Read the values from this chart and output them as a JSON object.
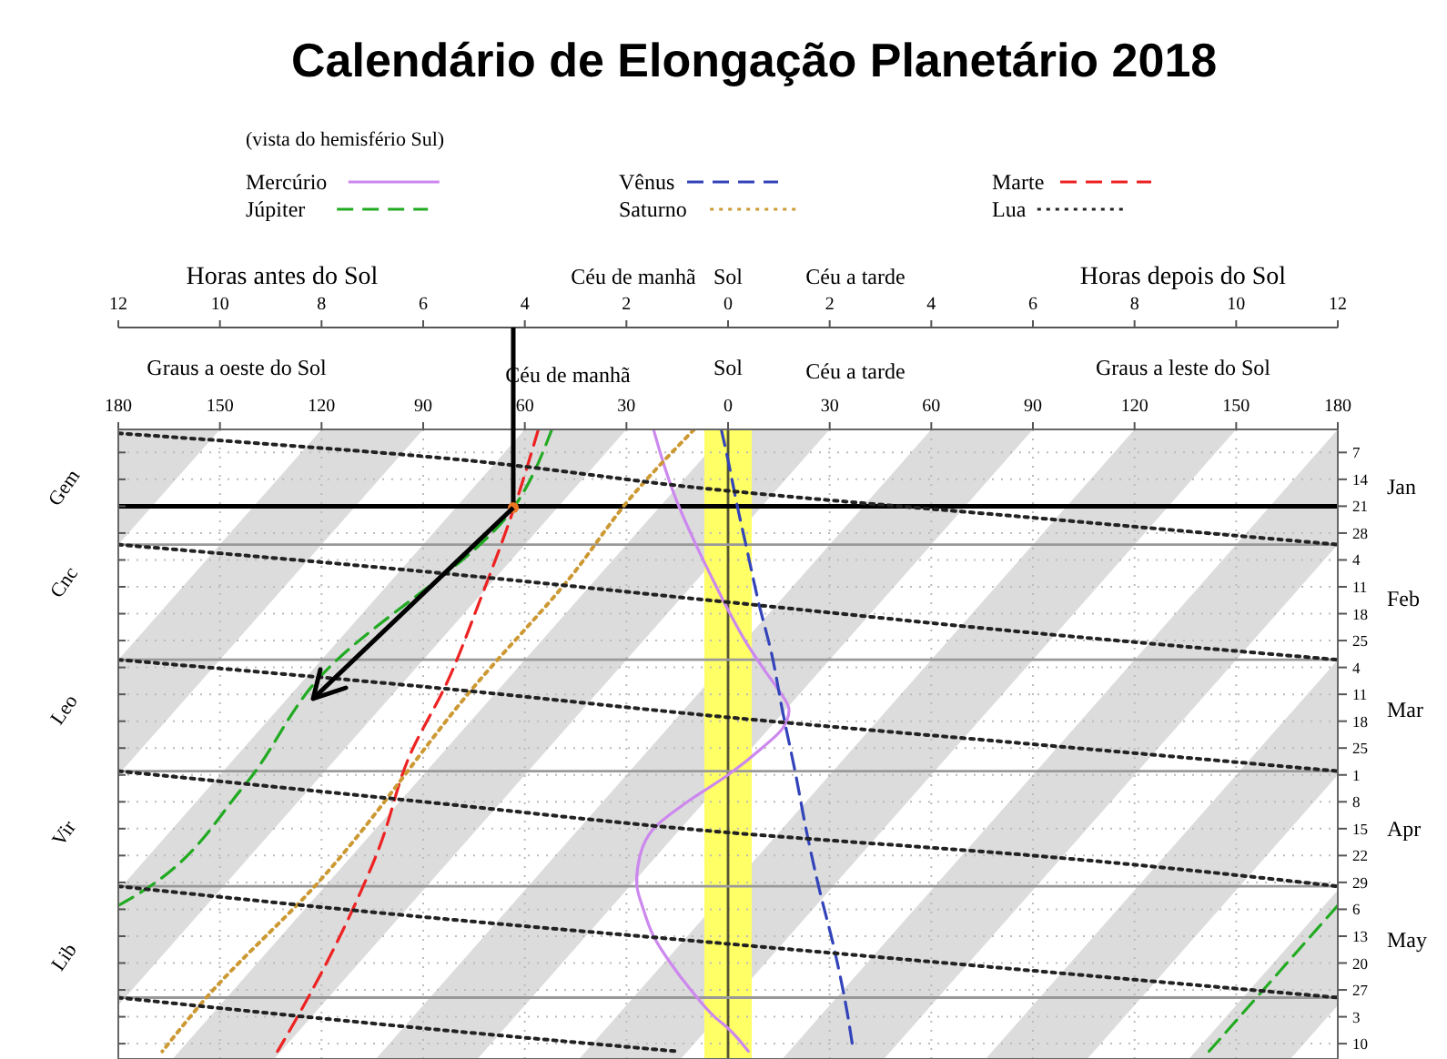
{
  "chart_data": {
    "type": "line",
    "title": "Calendário de Elongação Planetário 2018",
    "subtitle": "(vista do hemisfério Sul)",
    "annotations": [
      "Horas antes do Sol",
      "Céu de manhã",
      "Sol",
      "Céu a tarde",
      "Horas depois do Sol",
      "Graus a oeste do Sol",
      "Céu de manhã",
      "Sol",
      "Céu a tarde",
      "Graus a leste do Sol",
      "Gem",
      "Cnc",
      "Leo",
      "Vir",
      "Lib"
    ],
    "orientation": "horizontal",
    "legend": "top",
    "grid": true,
    "xlim": [
      -180,
      180
    ],
    "xticks": [
      {
        "value": -180,
        "label": "180"
      },
      {
        "value": -150,
        "label": "150"
      },
      {
        "value": -120,
        "label": "120"
      },
      {
        "value": -90,
        "label": "90"
      },
      {
        "value": -60,
        "label": "60"
      },
      {
        "value": -30,
        "label": "30"
      },
      0,
      30,
      60,
      90,
      120,
      150,
      180
    ],
    "x2lim": [
      -12,
      12
    ],
    "x2ticks": [
      {
        "value": -12,
        "label": "12"
      },
      {
        "value": -10,
        "label": "10"
      },
      {
        "value": -8,
        "label": "8"
      },
      {
        "value": -6,
        "label": "6"
      },
      {
        "value": -4,
        "label": "4"
      },
      {
        "value": -2,
        "label": "2"
      },
      0,
      2,
      4,
      6,
      8,
      10,
      12
    ],
    "ylim": [
      "2018-06-14",
      "2018-01-01"
    ],
    "yticks": [
      {
        "value": "2018-01-07",
        "label": "7"
      },
      {
        "value": "2018-01-14",
        "label": "14"
      },
      {
        "value": "2018-01-21",
        "label": "21"
      },
      {
        "value": "2018-01-28",
        "label": "28"
      },
      {
        "value": "2018-02-04",
        "label": "4"
      },
      {
        "value": "2018-02-11",
        "label": "11"
      },
      {
        "value": "2018-02-18",
        "label": "18"
      },
      {
        "value": "2018-02-25",
        "label": "25"
      },
      {
        "value": "2018-03-04",
        "label": "4"
      },
      {
        "value": "2018-03-11",
        "label": "11"
      },
      {
        "value": "2018-03-18",
        "label": "18"
      },
      {
        "value": "2018-03-25",
        "label": "25"
      },
      {
        "value": "2018-04-01",
        "label": "1"
      },
      {
        "value": "2018-04-08",
        "label": "8"
      },
      {
        "value": "2018-04-15",
        "label": "15"
      },
      {
        "value": "2018-04-22",
        "label": "22"
      },
      {
        "value": "2018-04-29",
        "label": "29"
      },
      {
        "value": "2018-05-06",
        "label": "6"
      },
      {
        "value": "2018-05-13",
        "label": "13"
      },
      {
        "value": "2018-05-20",
        "label": "20"
      },
      {
        "value": "2018-05-27",
        "label": "27"
      },
      {
        "value": "2018-06-03",
        "label": "3"
      },
      {
        "value": "2018-06-10",
        "label": "10"
      }
    ],
    "y2lim": [
      "2018-06-14",
      "2018-01-01"
    ],
    "y2ticks": [
      {
        "value": "2018-01-16",
        "label": "Jan"
      },
      {
        "value": "2018-02-14",
        "label": "Feb"
      },
      {
        "value": "2018-03-15",
        "label": "Mar"
      },
      {
        "value": "2018-04-15",
        "label": "Apr"
      },
      {
        "value": "2018-05-14",
        "label": "May"
      }
    ],
    "bands": [
      {
        "axis": "x",
        "from": -7,
        "to": 7,
        "color": "#ffff66"
      }
    ],
    "ref_lines": [
      {
        "axis": "x",
        "value": 0,
        "color": "#555533"
      },
      {
        "axis": "y",
        "value": "2018-01-31",
        "color": "#999999"
      },
      {
        "axis": "y",
        "value": "2018-03-02",
        "color": "#999999"
      },
      {
        "axis": "y",
        "value": "2018-03-31",
        "color": "#999999"
      },
      {
        "axis": "y",
        "value": "2018-04-30",
        "color": "#999999"
      },
      {
        "axis": "y",
        "value": "2018-05-29",
        "color": "#999999"
      },
      {
        "axis": "y",
        "value": "2018-01-21",
        "color": "#000000"
      }
    ],
    "series": [
      {
        "name": "Mercúrio",
        "color": "#cc88ee",
        "line_style": "solid",
        "x": [
          "2018-01-01",
          "2018-01-10",
          "2018-01-20",
          "2018-01-31",
          "2018-02-10",
          "2018-02-17",
          "2018-02-25",
          "2018-03-05",
          "2018-03-10",
          "2018-03-15",
          "2018-03-20",
          "2018-03-25",
          "2018-04-01",
          "2018-04-08",
          "2018-04-15",
          "2018-04-22",
          "2018-04-29",
          "2018-05-06",
          "2018-05-13",
          "2018-05-20",
          "2018-05-27",
          "2018-06-03",
          "2018-06-06",
          "2018-06-12"
        ],
        "values": [
          -22,
          -19,
          -15,
          -9.5,
          -4,
          0,
          5,
          11,
          15,
          18,
          16,
          10,
          0,
          -12,
          -22,
          -26,
          -27,
          -25,
          -22,
          -17,
          -11,
          -4,
          0,
          6
        ]
      },
      {
        "name": "Vênus",
        "color": "#3344bb",
        "line_style": "dashed",
        "x": [
          "2018-01-01",
          "2018-01-09",
          "2018-01-20",
          "2018-02-01",
          "2018-02-15",
          "2018-03-01",
          "2018-03-15",
          "2018-04-01",
          "2018-04-15",
          "2018-05-01",
          "2018-05-15",
          "2018-06-01",
          "2018-06-12"
        ],
        "values": [
          -2,
          0,
          2.5,
          5.5,
          9,
          13,
          16,
          20,
          23,
          27,
          31,
          35,
          37
        ]
      },
      {
        "name": "Marte",
        "color": "#ee2222",
        "line_style": "dashed",
        "x": [
          "2018-01-01",
          "2018-01-21",
          "2018-02-14",
          "2018-03-08",
          "2018-03-27",
          "2018-04-20",
          "2018-05-12",
          "2018-06-09",
          "2018-06-12"
        ],
        "values": [
          -56,
          -63,
          -73,
          -83,
          -94,
          -103,
          -114,
          -131,
          -133
        ]
      },
      {
        "name": "Júpiter",
        "color": "#22aa22",
        "line_style": "dashed",
        "x": [
          "2018-01-01",
          "2018-01-21",
          "2018-03-08",
          "2018-04-04",
          "2018-05-03",
          "2018-05-05"
        ],
        "values": [
          -52,
          -63,
          -122,
          -143,
          -176,
          -180
        ]
      },
      {
        "color": "#22aa22",
        "line_style": "dashed",
        "x": [
          "2018-05-05",
          "2018-05-20",
          "2018-06-12"
        ],
        "values": [
          180,
          165,
          142
        ]
      },
      {
        "name": "Saturno",
        "color": "#cc9933",
        "line_style": "dotted",
        "x": [
          "2018-01-01",
          "2018-01-18",
          "2018-02-09",
          "2018-03-08",
          "2018-04-30",
          "2018-05-29",
          "2018-06-12"
        ],
        "values": [
          -10,
          -28,
          -47,
          -74,
          -122,
          -154,
          -167
        ]
      },
      {
        "name": "Lua",
        "color": "#222222",
        "line_style": "dotted",
        "x": [
          "2018-01-02",
          "2018-01-08",
          "2018-01-17",
          "2018-01-24",
          "2018-01-31"
        ],
        "values": [
          -180,
          -90,
          0,
          90,
          180
        ]
      },
      {
        "color": "#222222",
        "line_style": "dotted",
        "x": [
          "2018-01-31",
          "2018-02-07",
          "2018-02-15",
          "2018-02-23",
          "2018-03-02"
        ],
        "values": [
          -180,
          -90,
          0,
          90,
          180
        ]
      },
      {
        "color": "#222222",
        "line_style": "dotted",
        "x": [
          "2018-03-02",
          "2018-03-09",
          "2018-03-17",
          "2018-03-24",
          "2018-03-31"
        ],
        "values": [
          -180,
          -90,
          0,
          90,
          180
        ]
      },
      {
        "color": "#222222",
        "line_style": "dotted",
        "x": [
          "2018-03-31",
          "2018-04-08",
          "2018-04-16",
          "2018-04-22",
          "2018-04-30"
        ],
        "values": [
          -180,
          -90,
          0,
          90,
          180
        ]
      },
      {
        "color": "#222222",
        "line_style": "dotted",
        "x": [
          "2018-04-30",
          "2018-05-08",
          "2018-05-15",
          "2018-05-22",
          "2018-05-29"
        ],
        "values": [
          -180,
          -90,
          0,
          90,
          180
        ]
      },
      {
        "color": "#222222",
        "line_style": "dotted",
        "x": [
          "2018-05-29",
          "2018-06-06",
          "2018-06-12"
        ],
        "values": [
          -180,
          -90,
          -15
        ]
      }
    ]
  }
}
